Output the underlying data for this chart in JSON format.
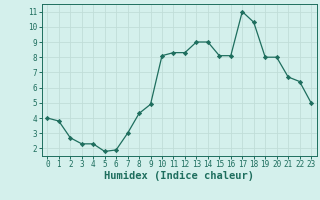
{
  "x": [
    0,
    1,
    2,
    3,
    4,
    5,
    6,
    7,
    8,
    9,
    10,
    11,
    12,
    13,
    14,
    15,
    16,
    17,
    18,
    19,
    20,
    21,
    22,
    23
  ],
  "y": [
    4.0,
    3.8,
    2.7,
    2.3,
    2.3,
    1.8,
    1.9,
    3.0,
    4.3,
    4.9,
    8.1,
    8.3,
    8.3,
    9.0,
    9.0,
    8.1,
    8.1,
    11.0,
    10.3,
    8.0,
    8.0,
    6.7,
    6.4,
    5.0
  ],
  "line_color": "#1e6e5e",
  "marker": "D",
  "marker_size": 2.2,
  "bg_color": "#d4f0ec",
  "grid_color": "#c0ddd8",
  "xlabel": "Humidex (Indice chaleur)",
  "xlim": [
    -0.5,
    23.5
  ],
  "ylim": [
    1.5,
    11.5
  ],
  "yticks": [
    2,
    3,
    4,
    5,
    6,
    7,
    8,
    9,
    10,
    11
  ],
  "xticks": [
    0,
    1,
    2,
    3,
    4,
    5,
    6,
    7,
    8,
    9,
    10,
    11,
    12,
    13,
    14,
    15,
    16,
    17,
    18,
    19,
    20,
    21,
    22,
    23
  ],
  "tick_fontsize": 5.5,
  "label_fontsize": 7.5,
  "axis_color": "#1e6e5e",
  "spine_color": "#1e6e5e"
}
